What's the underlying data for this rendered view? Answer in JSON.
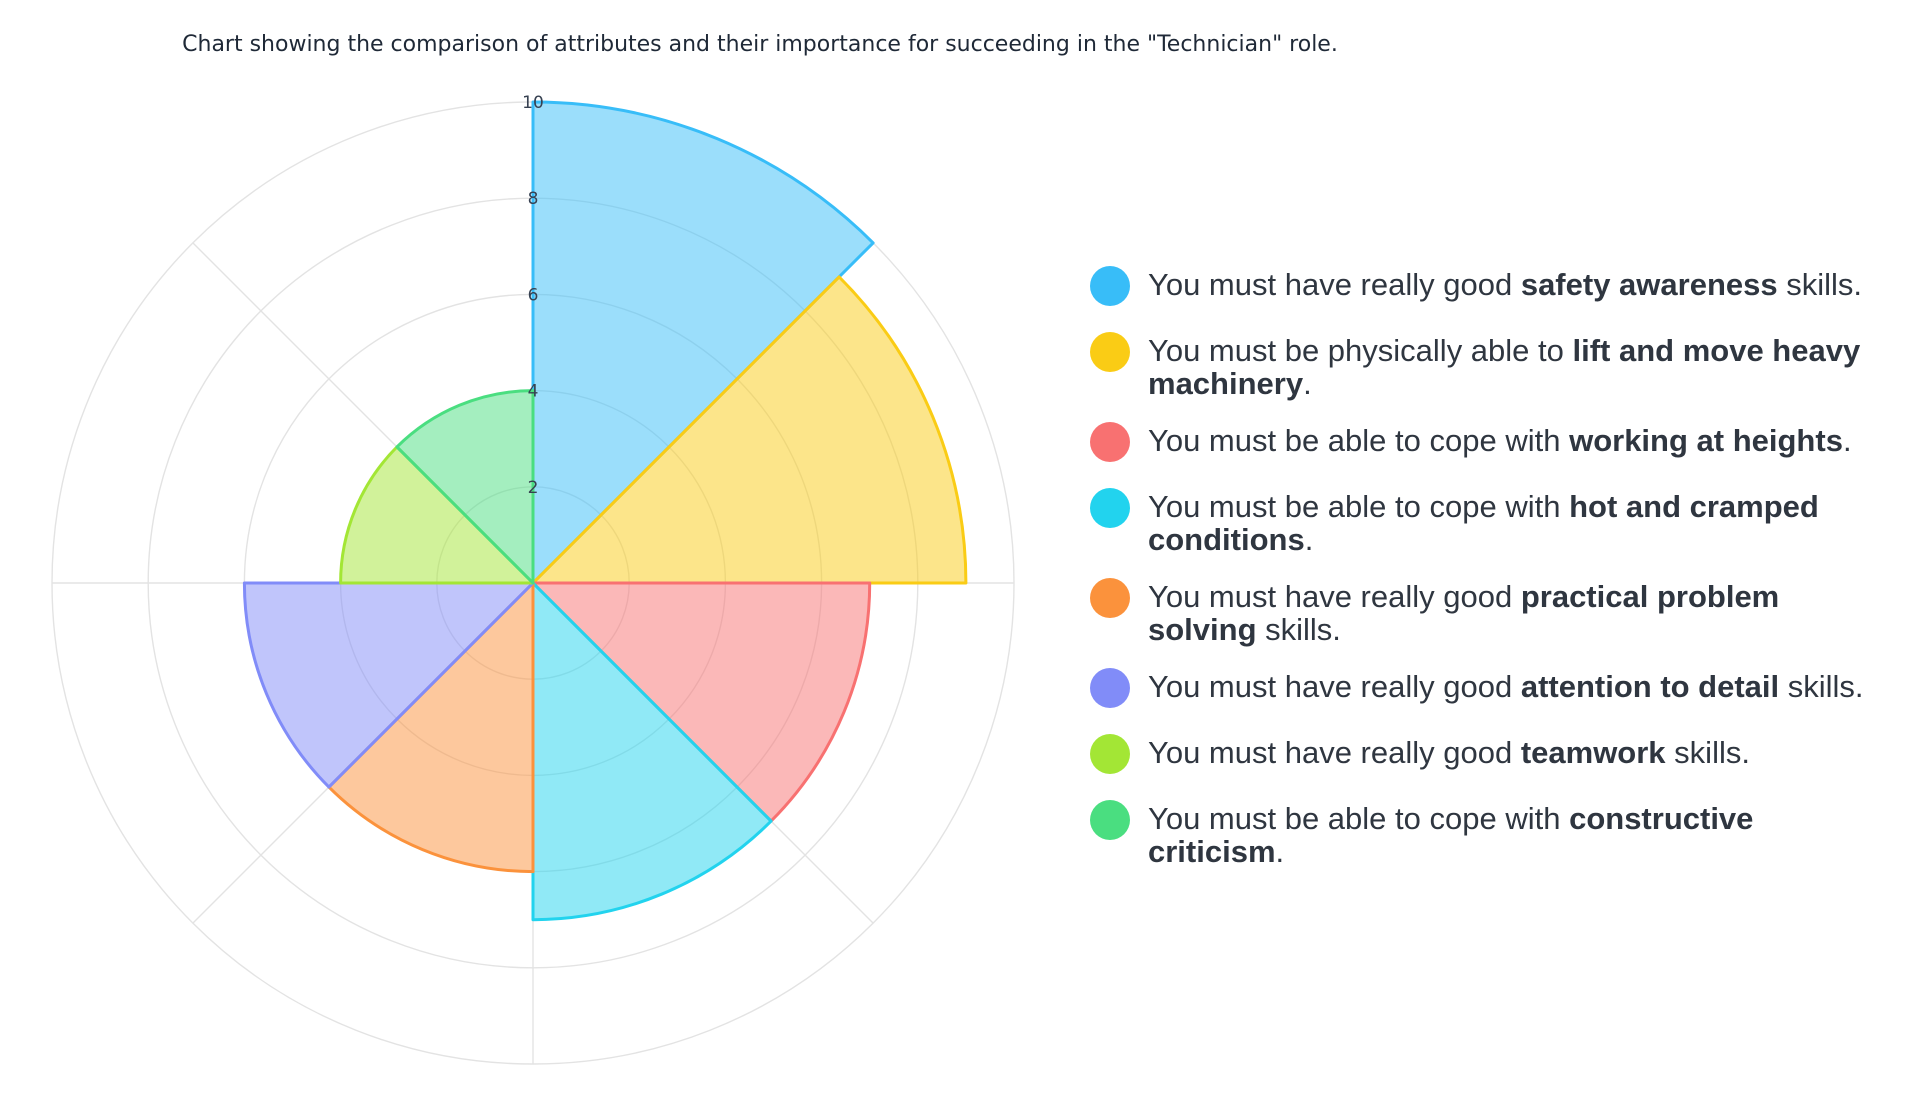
{
  "title": "Chart showing the comparison of attributes and their importance for succeeding in the \"Technician\" role.",
  "chart_data": {
    "type": "polar-area",
    "title": "Chart showing the comparison of attributes and their importance for succeeding in the \"Technician\" role.",
    "r_ticks": [
      "2",
      "4",
      "6",
      "8",
      "10"
    ],
    "r_range": [
      0,
      10
    ],
    "grid": true,
    "legend_position": "right",
    "series": [
      {
        "pre": "You must have really good ",
        "bold": "safety awareness",
        "post": " skills.",
        "value": 10,
        "color": "#38bdf8"
      },
      {
        "pre": "You must be physically able to ",
        "bold": "lift and move heavy machinery",
        "post": ".",
        "value": 9,
        "color": "#facc15"
      },
      {
        "pre": "You must be able to cope with ",
        "bold": "working at heights",
        "post": ".",
        "value": 7,
        "color": "#f87171"
      },
      {
        "pre": "You must be able to cope with ",
        "bold": "hot and cramped conditions",
        "post": ".",
        "value": 7,
        "color": "#22d3ee"
      },
      {
        "pre": "You must have really good ",
        "bold": "practical problem solving",
        "post": " skills.",
        "value": 6,
        "color": "#fb923c"
      },
      {
        "pre": "You must have really good ",
        "bold": "attention to detail",
        "post": " skills.",
        "value": 6,
        "color": "#818cf8"
      },
      {
        "pre": "You must have really good ",
        "bold": "teamwork",
        "post": " skills.",
        "value": 4,
        "color": "#a3e635"
      },
      {
        "pre": "You must be able to cope with ",
        "bold": "constructive criticism",
        "post": ".",
        "value": 4,
        "color": "#4ade80"
      }
    ]
  }
}
